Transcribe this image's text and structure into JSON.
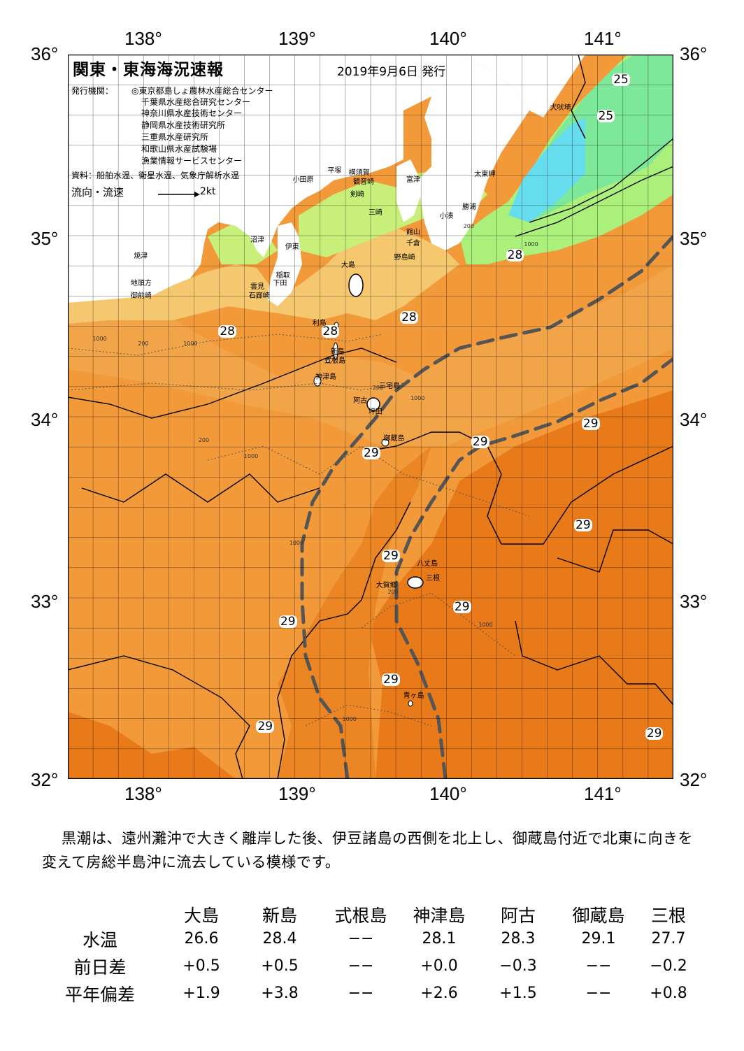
{
  "map": {
    "title": "関東・東海海況速報",
    "issue_date": "2019年9月6日 発行",
    "publisher_label": "発行機関：",
    "publishers": [
      "◎東京都島しょ農林水産総合センター",
      "千葉県水産総合研究センター",
      "神奈川県水産技術センター",
      "静岡県水産技術研究所",
      "三重県水産研究所",
      "和歌山県水産試験場",
      "漁業情報サービスセンター"
    ],
    "sources": "資料：船舶水温、衛星水温、気象庁解析水温",
    "flow_legend": "流向・流速",
    "flow_unit": "2kt",
    "lon_labels": [
      "138°",
      "139°",
      "140°",
      "141°"
    ],
    "lat_labels": [
      "36°",
      "35°",
      "34°",
      "33°",
      "32°"
    ],
    "lon_range": [
      137.5,
      141.5
    ],
    "lat_range": [
      32,
      36
    ],
    "colors": {
      "land": "#ffffff",
      "water_25": "#66ffcc",
      "water_26": "#aaf07a",
      "water_27": "#f7d878",
      "water_28": "#f0a040",
      "water_29": "#e87818",
      "kuroshio_axis": "#555555",
      "grid": "#000000"
    },
    "temperature_labels": [
      {
        "text": "25",
        "lon": 141.15,
        "lat": 35.86
      },
      {
        "text": "25",
        "lon": 141.05,
        "lat": 35.66
      },
      {
        "text": "28",
        "lon": 140.45,
        "lat": 34.89
      },
      {
        "text": "28",
        "lon": 138.55,
        "lat": 34.47
      },
      {
        "text": "28",
        "lon": 139.23,
        "lat": 34.47
      },
      {
        "text": "28",
        "lon": 139.75,
        "lat": 34.55
      },
      {
        "text": "29",
        "lon": 139.5,
        "lat": 33.8
      },
      {
        "text": "29",
        "lon": 140.22,
        "lat": 33.86
      },
      {
        "text": "29",
        "lon": 140.95,
        "lat": 33.96
      },
      {
        "text": "29",
        "lon": 140.9,
        "lat": 33.4
      },
      {
        "text": "29",
        "lon": 139.63,
        "lat": 33.23
      },
      {
        "text": "29",
        "lon": 140.1,
        "lat": 32.95
      },
      {
        "text": "29",
        "lon": 138.95,
        "lat": 32.87
      },
      {
        "text": "29",
        "lon": 139.63,
        "lat": 32.55
      },
      {
        "text": "29",
        "lon": 138.8,
        "lat": 32.29
      },
      {
        "text": "29",
        "lon": 141.37,
        "lat": 32.25
      }
    ],
    "place_names": [
      {
        "text": "犬吠埼",
        "lon": 140.75,
        "lat": 35.72
      },
      {
        "text": "太東岬",
        "lon": 140.25,
        "lat": 35.35
      },
      {
        "text": "勝浦",
        "lon": 140.17,
        "lat": 35.17
      },
      {
        "text": "小湊",
        "lon": 140.02,
        "lat": 35.12
      },
      {
        "text": "富津",
        "lon": 139.8,
        "lat": 35.32
      },
      {
        "text": "平塚",
        "lon": 139.28,
        "lat": 35.37
      },
      {
        "text": "横須賀",
        "lon": 139.42,
        "lat": 35.36
      },
      {
        "text": "観音崎",
        "lon": 139.45,
        "lat": 35.31
      },
      {
        "text": "剣崎",
        "lon": 139.43,
        "lat": 35.24
      },
      {
        "text": "三崎",
        "lon": 139.55,
        "lat": 35.14
      },
      {
        "text": "館山",
        "lon": 139.8,
        "lat": 35.03
      },
      {
        "text": "千倉",
        "lon": 139.8,
        "lat": 34.97
      },
      {
        "text": "野島崎",
        "lon": 139.72,
        "lat": 34.89
      },
      {
        "text": "小田原",
        "lon": 139.05,
        "lat": 35.32
      },
      {
        "text": "沼津",
        "lon": 138.77,
        "lat": 34.99
      },
      {
        "text": "伊東",
        "lon": 139.0,
        "lat": 34.95
      },
      {
        "text": "焼津",
        "lon": 138.0,
        "lat": 34.9
      },
      {
        "text": "大島",
        "lon": 139.37,
        "lat": 34.85
      },
      {
        "text": "稲取",
        "lon": 138.94,
        "lat": 34.79
      },
      {
        "text": "下田",
        "lon": 138.92,
        "lat": 34.75
      },
      {
        "text": "雲見",
        "lon": 138.77,
        "lat": 34.73
      },
      {
        "text": "石廊崎",
        "lon": 138.76,
        "lat": 34.68
      },
      {
        "text": "地頭方",
        "lon": 137.98,
        "lat": 34.75
      },
      {
        "text": "御前崎",
        "lon": 137.98,
        "lat": 34.68
      },
      {
        "text": "利島",
        "lon": 139.18,
        "lat": 34.53
      },
      {
        "text": "新島",
        "lon": 139.3,
        "lat": 34.37
      },
      {
        "text": "式根島",
        "lon": 139.26,
        "lat": 34.32
      },
      {
        "text": "神津島",
        "lon": 139.2,
        "lat": 34.23
      },
      {
        "text": "三宅島",
        "lon": 139.62,
        "lat": 34.18
      },
      {
        "text": "阿古",
        "lon": 139.45,
        "lat": 34.1
      },
      {
        "text": "坪田",
        "lon": 139.55,
        "lat": 34.04
      },
      {
        "text": "御蔵島",
        "lon": 139.65,
        "lat": 33.89
      },
      {
        "text": "八丈島",
        "lon": 139.87,
        "lat": 33.2
      },
      {
        "text": "三根",
        "lon": 139.93,
        "lat": 33.12
      },
      {
        "text": "大賀郷",
        "lon": 139.6,
        "lat": 33.08
      },
      {
        "text": "青ヶ島",
        "lon": 139.78,
        "lat": 32.47
      }
    ],
    "depth_labels": [
      {
        "text": "200",
        "lon": 139.65,
        "lat": 33.03
      },
      {
        "text": "200",
        "lon": 139.55,
        "lat": 34.16
      },
      {
        "text": "1000",
        "lon": 139.8,
        "lat": 34.1
      },
      {
        "text": "1000",
        "lon": 138.7,
        "lat": 33.78
      },
      {
        "text": "200",
        "lon": 138.4,
        "lat": 33.87
      },
      {
        "text": "1000",
        "lon": 139.0,
        "lat": 33.3
      },
      {
        "text": "1000",
        "lon": 140.25,
        "lat": 32.85
      },
      {
        "text": "1000",
        "lon": 139.35,
        "lat": 32.33
      },
      {
        "text": "200",
        "lon": 140.15,
        "lat": 35.05
      },
      {
        "text": "1000",
        "lon": 140.55,
        "lat": 34.95
      },
      {
        "text": "1000",
        "lon": 137.7,
        "lat": 34.43
      },
      {
        "text": "200",
        "lon": 138.0,
        "lat": 34.4
      },
      {
        "text": "1000",
        "lon": 138.3,
        "lat": 34.4
      }
    ]
  },
  "summary": "黒潮は、遠州灘沖で大きく離岸した後、伊豆諸島の西側を北上し、御蔵島付近で北東に向きを変えて房総半島沖に流去している模様です。",
  "table": {
    "stations": [
      "大島",
      "新島",
      "式根島",
      "神津島",
      "阿古",
      "御蔵島",
      "三根"
    ],
    "rows": [
      {
        "label": "水温",
        "values": [
          "26.6",
          "28.4",
          "−−",
          "28.1",
          "28.3",
          "29.1",
          "27.7"
        ]
      },
      {
        "label": "前日差",
        "values": [
          "+0.5",
          "+0.5",
          "−−",
          "+0.0",
          "−0.3",
          "−−",
          "−0.2"
        ]
      },
      {
        "label": "平年偏差",
        "values": [
          "+1.9",
          "+3.8",
          "−−",
          "+2.6",
          "+1.5",
          "−−",
          "+0.8"
        ]
      }
    ]
  }
}
